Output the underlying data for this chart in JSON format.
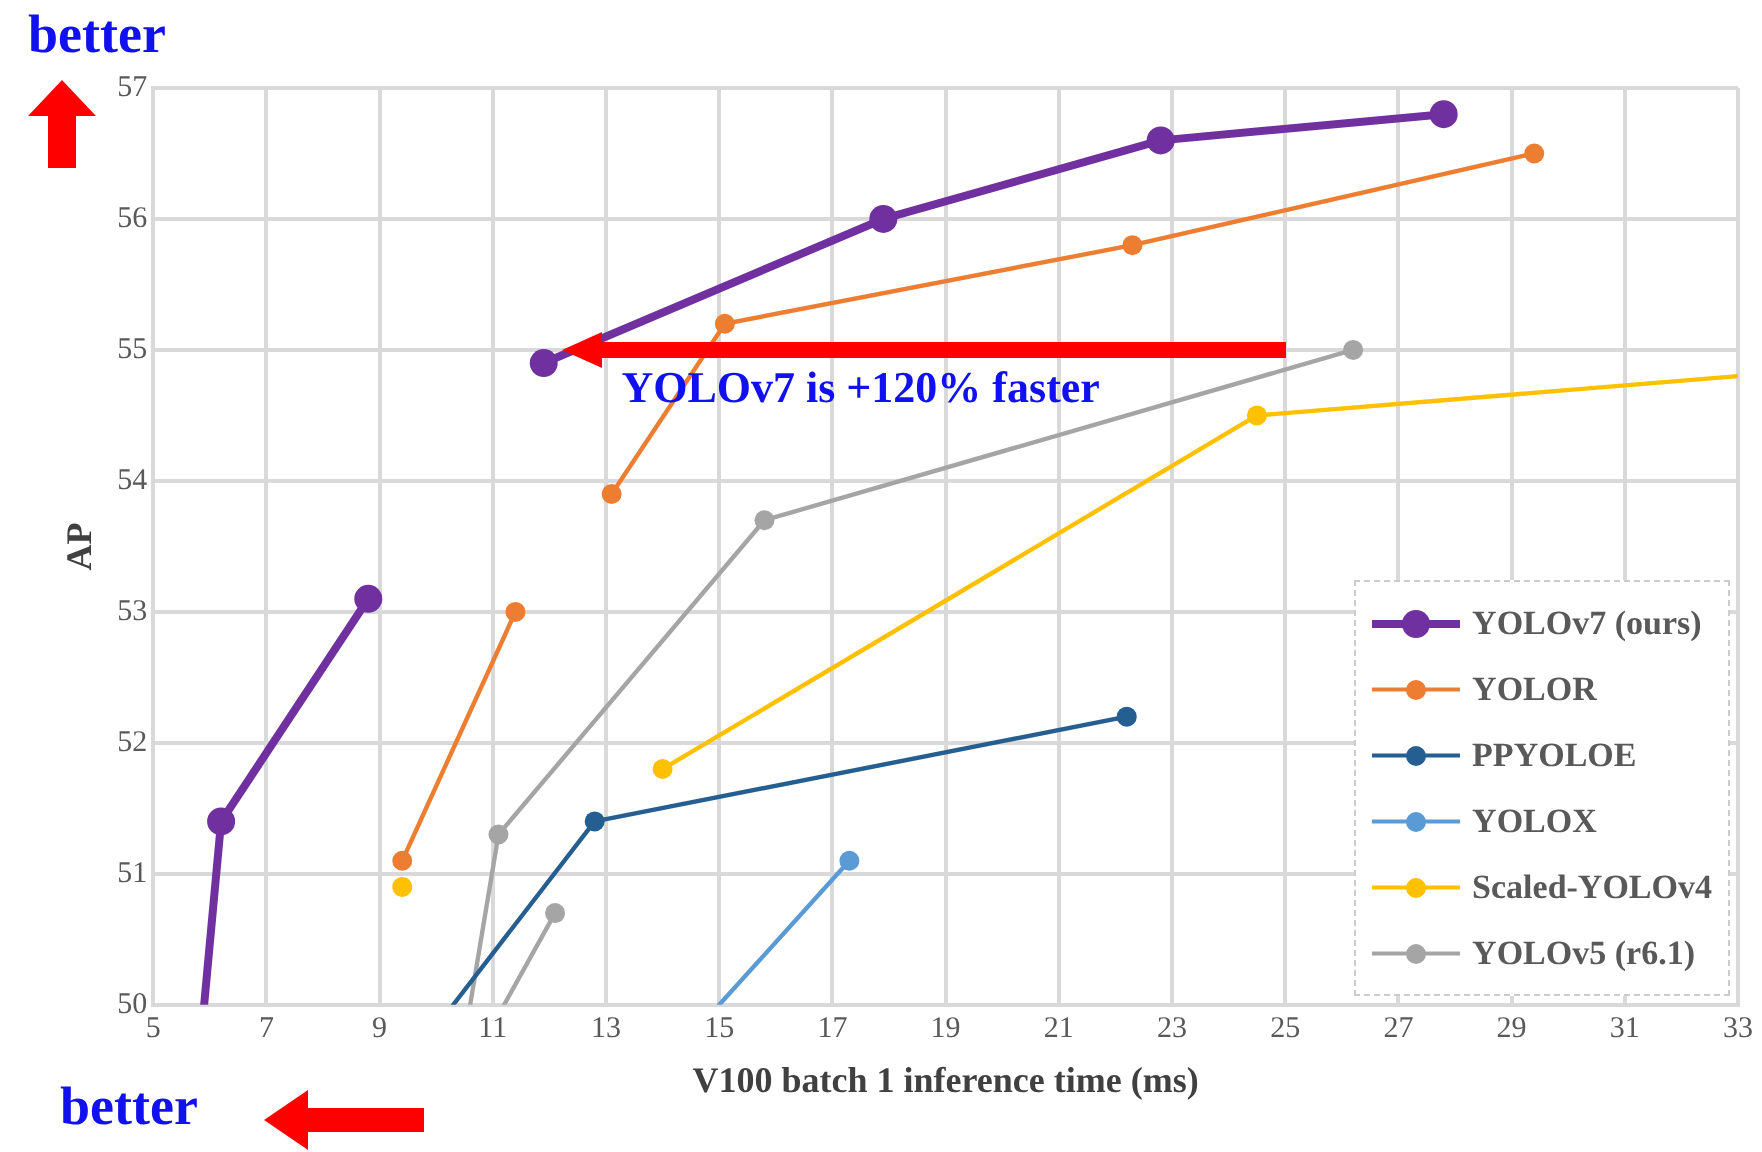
{
  "chart_data": {
    "type": "line",
    "xlabel": "V100 batch 1 inference time (ms)",
    "ylabel": "AP",
    "xlim": [
      5,
      33
    ],
    "xticks": [
      5,
      7,
      9,
      11,
      13,
      15,
      17,
      19,
      21,
      23,
      25,
      27,
      29,
      31,
      33
    ],
    "ylim": [
      50,
      57
    ],
    "yticks": [
      50,
      51,
      52,
      53,
      54,
      55,
      56,
      57
    ],
    "grid": true,
    "marker": "circle",
    "line_style": "solid",
    "legend": "bottom right",
    "annotations": [
      "better",
      "better",
      {
        "text": "YOLOv7 is +120% faster",
        "x": 12,
        "y": 55
      }
    ],
    "series": [
      {
        "name": "YOLOv7 (ours)",
        "color": "#7030a0",
        "x": [
          5.9,
          6.2,
          8.8,
          null,
          11.9,
          17.9,
          22.8,
          27.8
        ],
        "values": [
          50,
          51.4,
          53.1,
          null,
          54.9,
          56.0,
          56.6,
          56.8
        ]
      },
      {
        "name": "YOLOR",
        "color": "#ed7d31",
        "x": [
          9.4,
          11.4,
          null,
          13.1,
          15.1,
          22.3,
          29.4
        ],
        "values": [
          51.1,
          53.0,
          null,
          53.9,
          55.2,
          55.8,
          56.5
        ]
      },
      {
        "name": "PPYOLOE",
        "color": "#255e91",
        "x": [
          10.3,
          12.8,
          22.2
        ],
        "values": [
          50,
          51.4,
          52.2
        ]
      },
      {
        "name": "YOLOX",
        "color": "#5b9bd5",
        "x": [
          15.0,
          17.3
        ],
        "values": [
          50,
          51.1
        ]
      },
      {
        "name": "Scaled-YOLOv4",
        "color": "#ffc000",
        "x": [
          9.4,
          null,
          14.0,
          24.5,
          33
        ],
        "values": [
          50.9,
          null,
          51.8,
          54.5,
          54.8
        ]
      },
      {
        "name": "YOLOv5 (r6.1)",
        "color": "#a5a5a5",
        "x": [
          11.2,
          12.1,
          null,
          10.6,
          11.1,
          15.8,
          26.2
        ],
        "values": [
          50,
          50.7,
          null,
          50,
          51.3,
          53.7,
          55.0
        ]
      }
    ]
  }
}
